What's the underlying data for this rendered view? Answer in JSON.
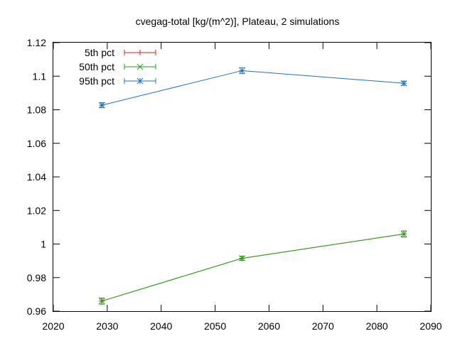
{
  "chart_data": {
    "type": "line",
    "title": "cvegag-total [kg/(m^2)], Plateau, 2 simulations",
    "xlabel": "",
    "ylabel": "",
    "xlim": [
      2020,
      2090
    ],
    "ylim": [
      0.96,
      1.12
    ],
    "xticks": [
      2020,
      2030,
      2040,
      2050,
      2060,
      2070,
      2080,
      2090
    ],
    "yticks": [
      0.96,
      0.98,
      1.0,
      1.02,
      1.04,
      1.06,
      1.08,
      1.1,
      1.12
    ],
    "ytick_labels": [
      "0.96",
      "0.98",
      "1",
      "1.02",
      "1.04",
      "1.06",
      "1.08",
      "1.1",
      "1.12"
    ],
    "grid": false,
    "legend_position": "top-left",
    "series": [
      {
        "name": "5th pct",
        "color": "#e41a1c",
        "marker": "plus",
        "x": [
          2029,
          2055,
          2085
        ],
        "y": [
          0.966,
          0.9915,
          1.006
        ],
        "err": [
          0.0018,
          0.0012,
          0.0018
        ]
      },
      {
        "name": "50th pct",
        "color": "#1aa51a",
        "marker": "cross",
        "x": [
          2029,
          2055,
          2085
        ],
        "y": [
          0.966,
          0.9915,
          1.006
        ],
        "err": [
          0.0018,
          0.0012,
          0.0018
        ]
      },
      {
        "name": "95th pct",
        "color": "#1f6fbf",
        "marker": "star",
        "x": [
          2029,
          2055,
          2085
        ],
        "y": [
          1.0827,
          1.1033,
          1.0958
        ],
        "err": [
          0.0015,
          0.0018,
          0.0012
        ]
      }
    ]
  }
}
